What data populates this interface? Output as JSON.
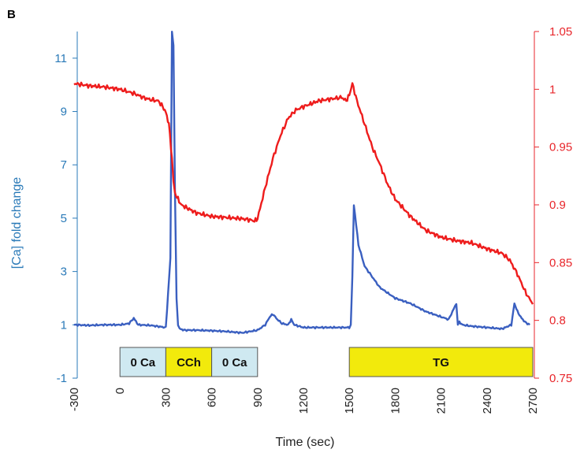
{
  "panel_label": "B",
  "chart_data": {
    "type": "line",
    "xlabel": "Time (sec)",
    "ylabel_left": "[Ca] fold change",
    "ylabel_right": "",
    "xlim": [
      -300,
      2700
    ],
    "ylim_left": [
      -1,
      12
    ],
    "ylim_right": [
      0.75,
      1.05
    ],
    "x_ticks": [
      "-300",
      "0",
      "300",
      "600",
      "900",
      "1200",
      "1500",
      "1800",
      "2100",
      "2400",
      "2700"
    ],
    "y_left_ticks": [
      "-1",
      "1",
      "3",
      "5",
      "7",
      "9",
      "11"
    ],
    "y_right_ticks": [
      "0.75",
      "0.8",
      "0.85",
      "0.9",
      "0.95",
      "1",
      "1.05"
    ],
    "colors": {
      "left_axis": "#2a7ab8",
      "right_axis": "#e8262b",
      "series_blue": "#3a5fc0",
      "series_red": "#ee1c1c",
      "box_blue": "#cfe9f1",
      "box_yellow": "#f2ea0c"
    },
    "series": [
      {
        "axis": "left",
        "color": "#3a5fc0",
        "x": [
          -300,
          -200,
          -100,
          0,
          60,
          90,
          120,
          200,
          300,
          330,
          340,
          350,
          360,
          370,
          380,
          390,
          420,
          500,
          600,
          700,
          800,
          900,
          950,
          980,
          1000,
          1030,
          1060,
          1100,
          1120,
          1140,
          1200,
          1300,
          1400,
          1500,
          1510,
          1520,
          1530,
          1560,
          1600,
          1650,
          1700,
          1800,
          1900,
          2000,
          2100,
          2150,
          2200,
          2210,
          2220,
          2240,
          2300,
          2400,
          2500,
          2560,
          2580,
          2600,
          2620,
          2650,
          2680
        ],
        "y": [
          1.0,
          0.98,
          1.0,
          1.0,
          1.05,
          1.25,
          1.0,
          0.98,
          0.9,
          3.5,
          12.0,
          11.5,
          6.0,
          2.0,
          1.0,
          0.85,
          0.8,
          0.8,
          0.78,
          0.75,
          0.7,
          0.8,
          1.0,
          1.3,
          1.4,
          1.2,
          1.05,
          1.0,
          1.2,
          1.0,
          0.9,
          0.9,
          0.9,
          0.9,
          1.0,
          2.8,
          5.5,
          4.0,
          3.2,
          2.8,
          2.4,
          2.0,
          1.8,
          1.5,
          1.3,
          1.2,
          1.8,
          1.0,
          1.1,
          1.0,
          0.95,
          0.9,
          0.85,
          1.0,
          1.8,
          1.5,
          1.3,
          1.1,
          1.0
        ]
      },
      {
        "axis": "right",
        "color": "#ee1c1c",
        "x": [
          -300,
          -200,
          -100,
          0,
          50,
          100,
          150,
          200,
          250,
          280,
          300,
          320,
          340,
          350,
          360,
          380,
          400,
          500,
          600,
          700,
          800,
          850,
          880,
          900,
          950,
          1000,
          1050,
          1100,
          1150,
          1200,
          1300,
          1400,
          1450,
          1480,
          1500,
          1520,
          1550,
          1600,
          1650,
          1700,
          1750,
          1800,
          1900,
          2000,
          2100,
          2200,
          2300,
          2400,
          2500,
          2550,
          2600,
          2650,
          2700
        ],
        "y": [
          1.005,
          1.003,
          1.002,
          1.0,
          0.998,
          0.996,
          0.993,
          0.991,
          0.99,
          0.985,
          0.98,
          0.97,
          0.94,
          0.92,
          0.91,
          0.905,
          0.9,
          0.893,
          0.89,
          0.889,
          0.888,
          0.887,
          0.886,
          0.888,
          0.915,
          0.94,
          0.96,
          0.975,
          0.982,
          0.985,
          0.99,
          0.992,
          0.993,
          0.99,
          0.995,
          1.005,
          0.99,
          0.97,
          0.95,
          0.935,
          0.918,
          0.905,
          0.89,
          0.878,
          0.872,
          0.869,
          0.867,
          0.862,
          0.858,
          0.852,
          0.84,
          0.825,
          0.814
        ]
      }
    ],
    "treatment_bars": [
      {
        "label": "0 Ca",
        "start": 0,
        "end": 300,
        "color": "#cfe9f1"
      },
      {
        "label": "CCh",
        "start": 300,
        "end": 600,
        "color": "#f2ea0c"
      },
      {
        "label": "0 Ca",
        "start": 600,
        "end": 900,
        "color": "#cfe9f1"
      },
      {
        "label": "TG",
        "start": 1500,
        "end": 2700,
        "color": "#f2ea0c"
      }
    ]
  }
}
